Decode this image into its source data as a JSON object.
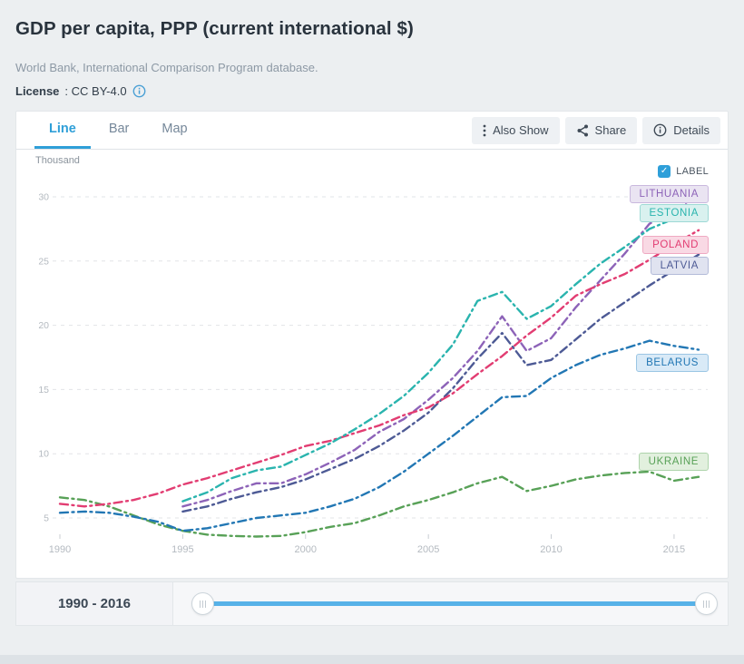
{
  "header": {
    "title": "GDP per capita, PPP (current international $)",
    "subtitle": "World Bank, International Comparison Program database.",
    "license_label": "License",
    "license_value": ": CC BY-4.0"
  },
  "tabs": [
    {
      "label": "Line",
      "active": true
    },
    {
      "label": "Bar",
      "active": false
    },
    {
      "label": "Map",
      "active": false
    }
  ],
  "toolbar": {
    "also_show": "Also Show",
    "share": "Share",
    "details": "Details"
  },
  "chart": {
    "unit": "Thousand",
    "label_toggle": "LABEL",
    "label_checked": true
  },
  "chart_data": {
    "type": "line",
    "title": "GDP per capita, PPP (current international $)",
    "y_unit": "Thousand",
    "grid": true,
    "legend_position": "end-of-line-labels",
    "x": [
      1990,
      1991,
      1992,
      1993,
      1994,
      1995,
      1996,
      1997,
      1998,
      1999,
      2000,
      2001,
      2002,
      2003,
      2004,
      2005,
      2006,
      2007,
      2008,
      2009,
      2010,
      2011,
      2012,
      2013,
      2014,
      2015,
      2016
    ],
    "x_ticks": [
      1990,
      1995,
      2000,
      2005,
      2010,
      2015
    ],
    "y_ticks": [
      5,
      10,
      15,
      20,
      25,
      30
    ],
    "ylim": [
      3,
      31
    ],
    "series": [
      {
        "name": "Ukraine",
        "label": "UKRAINE",
        "color": "#58a157",
        "label_bg": "#e2f0de",
        "label_border": "#aed4ab",
        "label_dy": -16,
        "values": [
          6.6,
          6.4,
          5.9,
          5.2,
          4.5,
          4.0,
          3.7,
          3.6,
          3.55,
          3.6,
          3.9,
          4.3,
          4.6,
          5.2,
          5.9,
          6.4,
          7.0,
          7.7,
          8.2,
          7.1,
          7.5,
          8.0,
          8.3,
          8.5,
          8.6,
          7.9,
          8.2
        ]
      },
      {
        "name": "Belarus",
        "label": "BELARUS",
        "color": "#2277b4",
        "label_bg": "#d9eaf7",
        "label_border": "#9bc6e4",
        "label_dy": 15,
        "values": [
          5.4,
          5.5,
          5.4,
          5.1,
          4.7,
          4.0,
          4.2,
          4.6,
          5.0,
          5.2,
          5.4,
          5.9,
          6.5,
          7.4,
          8.6,
          10.0,
          11.4,
          12.9,
          14.4,
          14.5,
          15.9,
          16.9,
          17.7,
          18.2,
          18.8,
          18.4,
          18.1
        ]
      },
      {
        "name": "Latvia",
        "label": "LATVIA",
        "color": "#4d5a95",
        "label_bg": "#e0e3f0",
        "label_border": "#b3bbd8",
        "label_dy": 13,
        "values": [
          null,
          null,
          null,
          null,
          null,
          5.5,
          5.9,
          6.5,
          7.0,
          7.4,
          8.0,
          8.8,
          9.6,
          10.6,
          11.8,
          13.2,
          15.1,
          17.4,
          19.4,
          16.9,
          17.3,
          18.9,
          20.5,
          21.8,
          23.1,
          24.3,
          25.5
        ]
      },
      {
        "name": "Lithuania",
        "label": "LITHUANIA",
        "color": "#8d63b8",
        "label_bg": "#eae4f2",
        "label_border": "#c9b8de",
        "label_dy": 0,
        "values": [
          null,
          null,
          null,
          null,
          null,
          5.9,
          6.4,
          7.1,
          7.7,
          7.7,
          8.4,
          9.3,
          10.3,
          11.7,
          12.7,
          14.2,
          15.9,
          18.0,
          20.7,
          18.0,
          19.0,
          21.4,
          23.5,
          25.6,
          27.9,
          28.9,
          30.2
        ]
      },
      {
        "name": "Poland",
        "label": "POLAND",
        "color": "#e23d72",
        "label_bg": "#f9d9e4",
        "label_border": "#efa9c2",
        "label_dy": 17,
        "values": [
          6.1,
          5.9,
          6.1,
          6.4,
          6.9,
          7.6,
          8.1,
          8.7,
          9.3,
          9.9,
          10.6,
          11.0,
          11.6,
          12.2,
          13.0,
          13.6,
          14.7,
          16.2,
          17.6,
          19.2,
          20.6,
          22.3,
          23.2,
          24.0,
          25.1,
          26.3,
          27.4
        ]
      },
      {
        "name": "Estonia",
        "label": "ESTONIA",
        "color": "#2ab4ae",
        "label_bg": "#d9f1ef",
        "label_border": "#9ed9d5",
        "label_dy": 3,
        "values": [
          null,
          null,
          null,
          null,
          null,
          6.3,
          7.0,
          8.1,
          8.7,
          9.0,
          9.9,
          10.8,
          11.9,
          13.1,
          14.5,
          16.3,
          18.5,
          21.9,
          22.6,
          20.5,
          21.5,
          23.2,
          24.8,
          26.1,
          27.5,
          28.3,
          28.9
        ]
      }
    ]
  },
  "slider": {
    "range_label": "1990 - 2016"
  }
}
